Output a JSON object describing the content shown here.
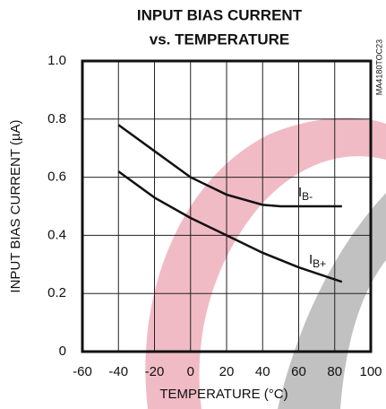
{
  "chart_data": {
    "type": "line",
    "title": [
      "INPUT BIAS CURRENT",
      "vs. TEMPERATURE"
    ],
    "xlabel": "TEMPERATURE (°C)",
    "ylabel": "INPUT BIAS CURRENT (µA)",
    "side_note": "MA4180TOC23",
    "xlim": [
      -60,
      100
    ],
    "xticks": [
      -60,
      -40,
      -20,
      0,
      20,
      40,
      60,
      80,
      100
    ],
    "ylim": [
      0,
      1.0
    ],
    "yticks": [
      {
        "value": 0,
        "label": "0"
      },
      0.2,
      0.4,
      0.6,
      0.8,
      {
        "value": 1.0,
        "label": "1.0"
      }
    ],
    "grid": true,
    "color": "#111",
    "series": [
      {
        "name": "IB-",
        "x": [
          -40,
          -20,
          0,
          20,
          40,
          50,
          60,
          70,
          84
        ],
        "values": [
          0.78,
          0.69,
          0.6,
          0.54,
          0.505,
          0.5,
          0.5,
          0.5,
          0.5
        ]
      },
      {
        "name": "IB+",
        "x": [
          -40,
          -20,
          0,
          20,
          40,
          60,
          84
        ],
        "values": [
          0.62,
          0.53,
          0.46,
          0.4,
          0.34,
          0.29,
          0.24
        ]
      }
    ]
  }
}
